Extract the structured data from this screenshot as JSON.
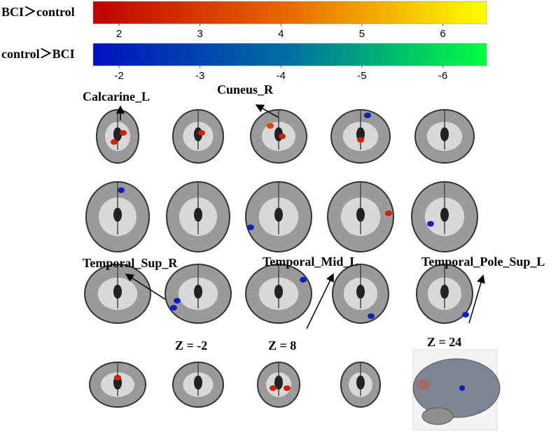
{
  "colorbars": [
    {
      "label": "BCI＞control",
      "colors": [
        "#c00000",
        "#e86a00",
        "#ffff00"
      ],
      "lim": [
        1.68,
        6.54
      ],
      "ticks": [
        2,
        3,
        4,
        5,
        6
      ]
    },
    {
      "label": "control＞BCI",
      "colors": [
        "#0010c0",
        "#0070a0",
        "#00ff40"
      ],
      "lim": [
        -1.68,
        -6.54
      ],
      "ticks": [
        -2,
        -3,
        -4,
        -5,
        -6
      ]
    }
  ],
  "annotations": [
    "Calcarine_L",
    "Cuneus_R",
    "Temporal_Sup_R",
    "Temporal_Mid_L",
    "Temporal_Pole_Sup_L"
  ],
  "slice_labels": [
    "Z = -2",
    "Z = 8",
    "Z = 24"
  ]
}
